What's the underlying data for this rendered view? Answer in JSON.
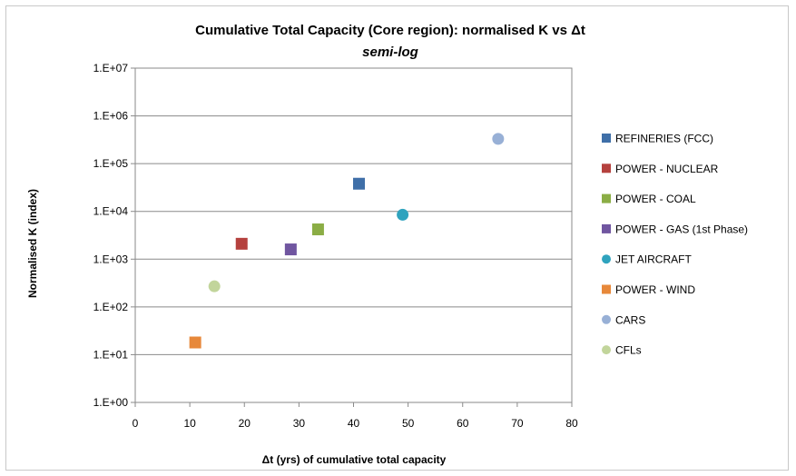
{
  "chart_data": {
    "type": "scatter",
    "title": "Cumulative Total Capacity (Core region): normalised K vs Δt",
    "subtitle": "semi-log",
    "xlabel": "Δt (yrs) of cumulative total capacity",
    "ylabel": "Normalised K (index)",
    "xlim": [
      0,
      80
    ],
    "ylim": [
      1,
      10000000
    ],
    "y_scale": "log",
    "grid": "horizontal",
    "legend_position": "right",
    "x_ticks": [
      "0",
      "10",
      "20",
      "30",
      "40",
      "50",
      "60",
      "70",
      "80"
    ],
    "x_tick_values": [
      0,
      10,
      20,
      30,
      40,
      50,
      60,
      70,
      80
    ],
    "y_ticks": [
      "1.E+00",
      "1.E+01",
      "1.E+02",
      "1.E+03",
      "1.E+04",
      "1.E+05",
      "1.E+06",
      "1.E+07"
    ],
    "y_tick_values": [
      1,
      10,
      100,
      1000,
      10000,
      100000,
      1000000,
      10000000
    ],
    "series": [
      {
        "name": "REFINERIES (FCC)",
        "marker": "square",
        "color": "#3f6fa8",
        "x": 41,
        "y": 38000
      },
      {
        "name": "POWER - NUCLEAR",
        "marker": "square",
        "color": "#b5413e",
        "x": 19.5,
        "y": 2100
      },
      {
        "name": "POWER - COAL",
        "marker": "square",
        "color": "#8bad45",
        "x": 33.5,
        "y": 4200
      },
      {
        "name": "POWER - GAS (1st Phase)",
        "marker": "square",
        "color": "#7056a0",
        "x": 28.5,
        "y": 1600
      },
      {
        "name": "JET AIRCRAFT",
        "marker": "circle",
        "color": "#2fa3be",
        "x": 49,
        "y": 8500
      },
      {
        "name": "POWER - WIND",
        "marker": "square",
        "color": "#e7883a",
        "x": 11,
        "y": 18
      },
      {
        "name": "CARS",
        "marker": "circle",
        "color": "#98b0d6",
        "x": 66.5,
        "y": 330000
      },
      {
        "name": "CFLs",
        "marker": "circle",
        "color": "#c2d59b",
        "x": 14.5,
        "y": 270
      }
    ]
  }
}
